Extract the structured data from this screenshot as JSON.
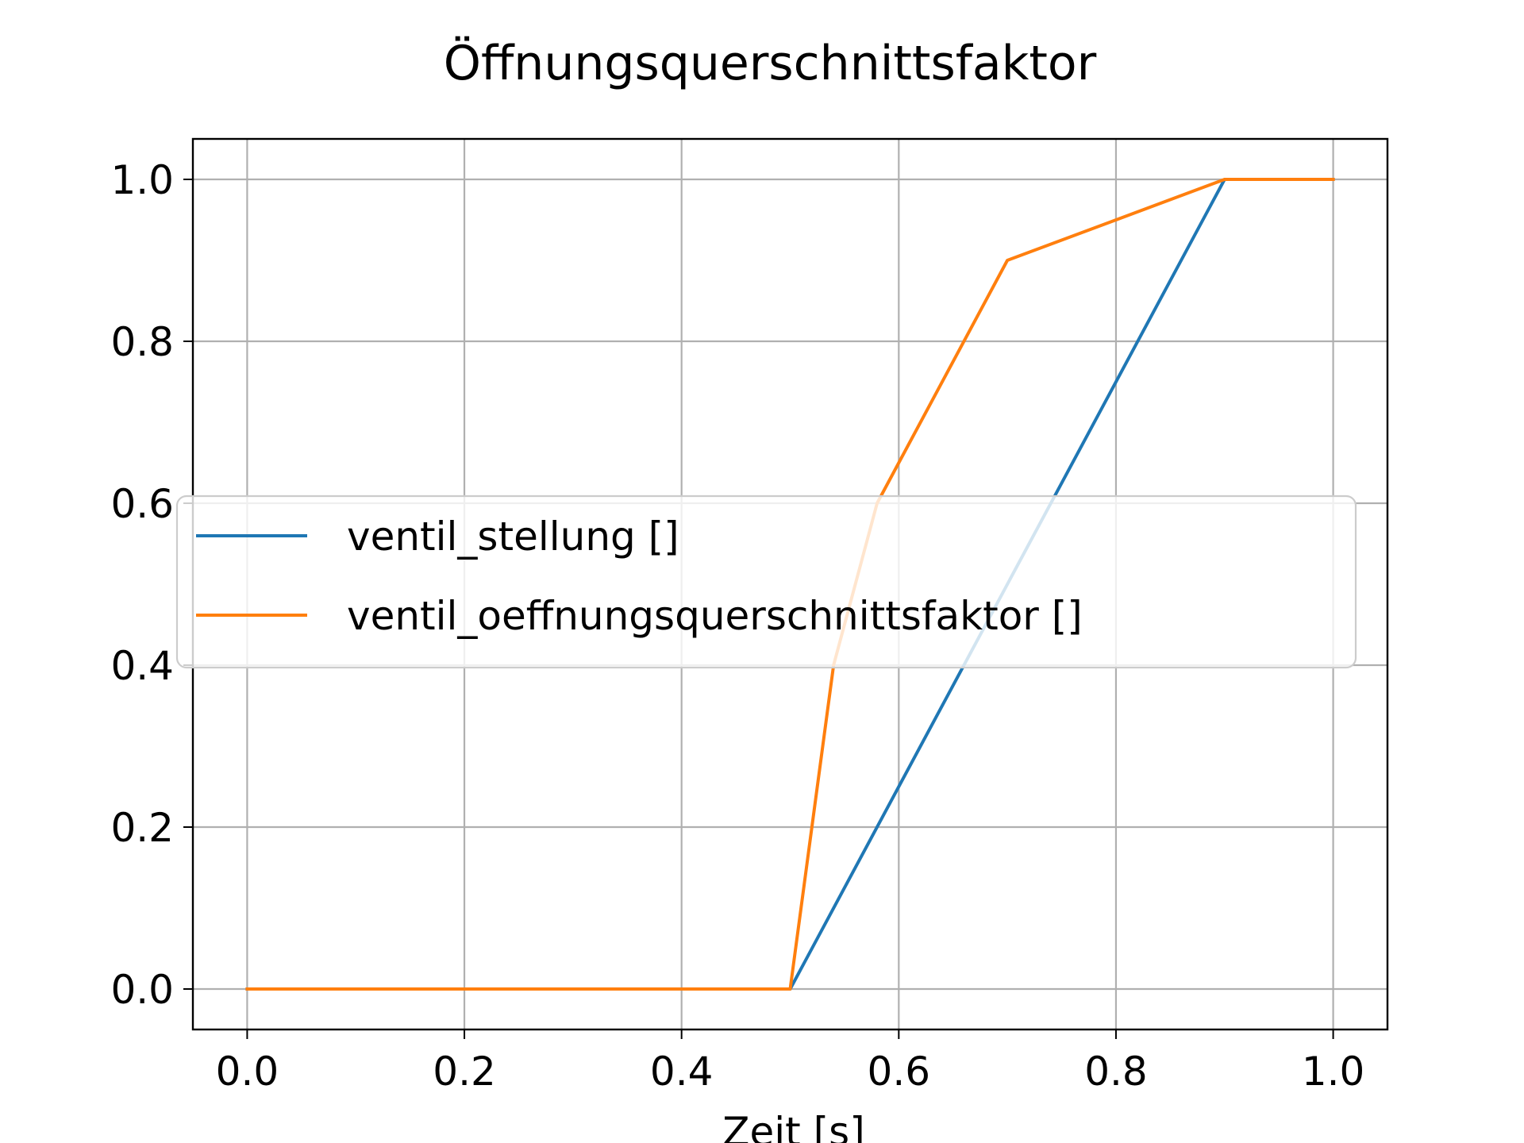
{
  "chart_data": {
    "type": "line",
    "title": "Öffnungsquerschnittsfaktor",
    "xlabel": "Zeit [s]",
    "ylabel": "",
    "xlim": [
      -0.05,
      1.05
    ],
    "ylim": [
      -0.05,
      1.05
    ],
    "xticks": [
      0.0,
      0.2,
      0.4,
      0.6,
      0.8,
      1.0
    ],
    "xtick_labels": [
      "0.0",
      "0.2",
      "0.4",
      "0.6",
      "0.8",
      "1.0"
    ],
    "yticks": [
      0.0,
      0.2,
      0.4,
      0.6,
      0.8,
      1.0
    ],
    "ytick_labels": [
      "0.0",
      "0.2",
      "0.4",
      "0.6",
      "0.8",
      "1.0"
    ],
    "grid": true,
    "legend_position": "center-right",
    "series": [
      {
        "name": "ventil_stellung []",
        "color": "#1f77b4",
        "x": [
          0.0,
          0.5,
          0.9,
          1.0
        ],
        "y": [
          0.0,
          0.0,
          1.0,
          1.0
        ]
      },
      {
        "name": "ventil_oeffnungsquerschnittsfaktor []",
        "color": "#ff7f0e",
        "x": [
          0.0,
          0.5,
          0.54,
          0.58,
          0.7,
          0.9,
          1.0
        ],
        "y": [
          0.0,
          0.0,
          0.4,
          0.6,
          0.9,
          1.0,
          1.0
        ]
      }
    ]
  }
}
